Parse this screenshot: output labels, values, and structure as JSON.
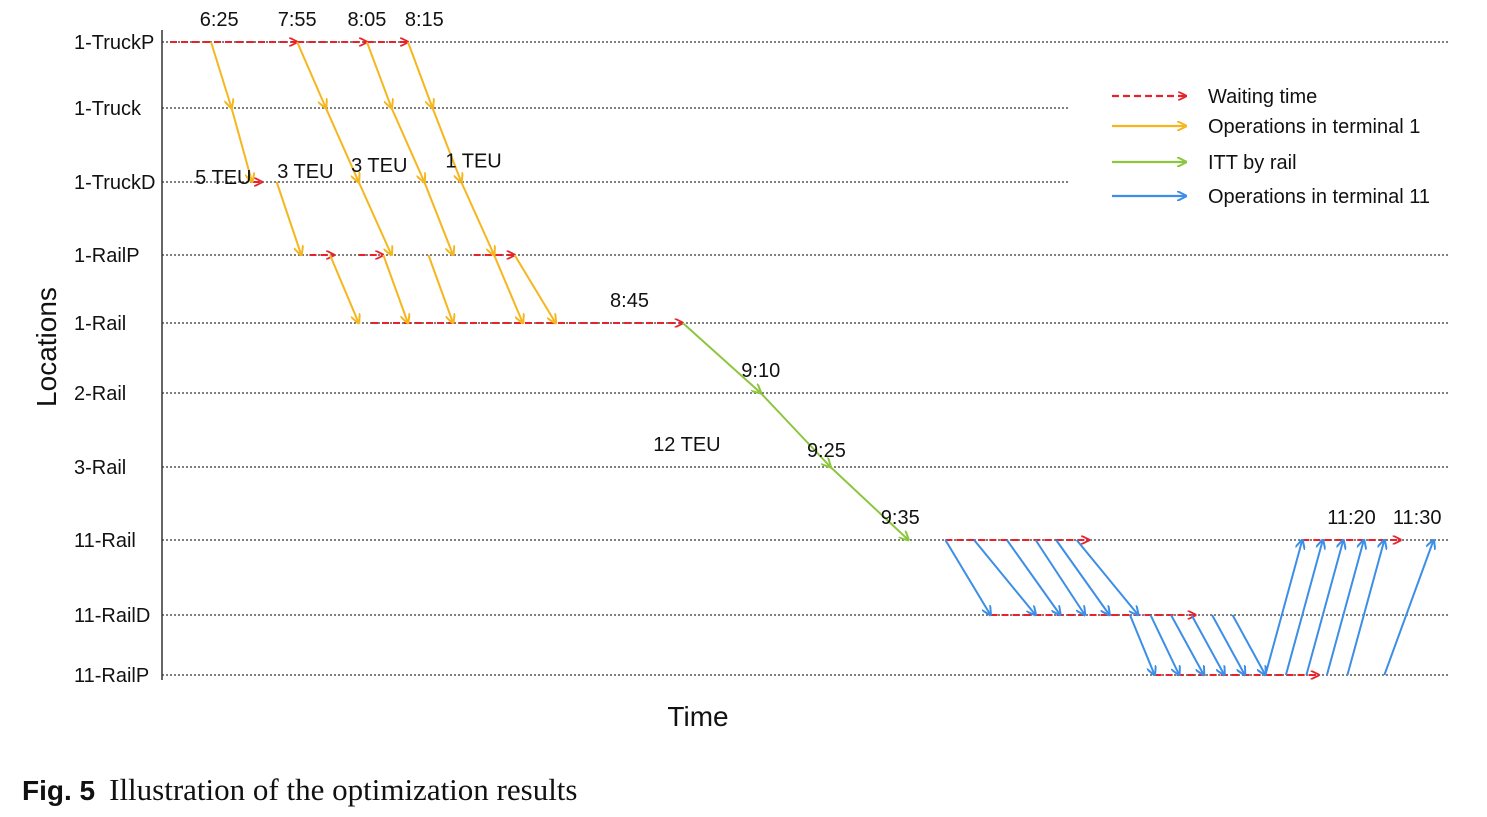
{
  "chart_data": {
    "type": "line",
    "title": "",
    "xlabel": "Time",
    "ylabel": "Locations",
    "locations": [
      "1-TruckP",
      "1-Truck",
      "1-TruckD",
      "1-RailP",
      "1-Rail",
      "2-Rail",
      "3-Rail",
      "11-Rail",
      "11-RailD",
      "11-RailP"
    ],
    "time_labels": [
      "6:25",
      "7:55",
      "8:05",
      "8:15",
      "8:45",
      "9:10",
      "9:25",
      "9:35",
      "11:20",
      "11:30"
    ],
    "volume_labels": [
      "5 TEU",
      "3 TEU",
      "3 TEU",
      "1 TEU",
      "12 TEU"
    ],
    "legend": [
      {
        "name": "Waiting time",
        "color": "#e8212b",
        "style": "dashed"
      },
      {
        "name": "Operations in terminal 1",
        "color": "#f5b61e",
        "style": "solid"
      },
      {
        "name": "ITT by rail",
        "color": "#8cc63f",
        "style": "solid"
      },
      {
        "name": "Operations in terminal 11",
        "color": "#3c8ee6",
        "style": "solid"
      }
    ],
    "series": [
      {
        "name": "Waiting time",
        "color": "#e8212b",
        "segments": [
          {
            "from": {
              "t": 0.0,
              "loc": "1-TruckP"
            },
            "to": {
              "t": 1.55,
              "loc": "1-TruckP"
            }
          },
          {
            "from": {
              "t": 1.55,
              "loc": "1-TruckP"
            },
            "to": {
              "t": 2.4,
              "loc": "1-TruckP"
            }
          },
          {
            "from": {
              "t": 2.4,
              "loc": "1-TruckP"
            },
            "to": {
              "t": 2.9,
              "loc": "1-TruckP"
            }
          },
          {
            "from": {
              "t": 1.0,
              "loc": "1-TruckD"
            },
            "to": {
              "t": 1.12,
              "loc": "1-TruckD"
            }
          },
          {
            "from": {
              "t": 1.7,
              "loc": "1-RailP"
            },
            "to": {
              "t": 2.0,
              "loc": "1-RailP"
            }
          },
          {
            "from": {
              "t": 2.3,
              "loc": "1-RailP"
            },
            "to": {
              "t": 2.6,
              "loc": "1-RailP"
            }
          },
          {
            "from": {
              "t": 3.7,
              "loc": "1-RailP"
            },
            "to": {
              "t": 4.2,
              "loc": "1-RailP"
            }
          },
          {
            "from": {
              "t": 2.45,
              "loc": "1-Rail"
            },
            "to": {
              "t": 6.25,
              "loc": "1-Rail"
            }
          },
          {
            "from": {
              "t": 9.45,
              "loc": "11-Rail"
            },
            "to": {
              "t": 11.2,
              "loc": "11-Rail"
            }
          },
          {
            "from": {
              "t": 10.0,
              "loc": "11-RailD"
            },
            "to": {
              "t": 12.5,
              "loc": "11-RailD"
            }
          },
          {
            "from": {
              "t": 12.0,
              "loc": "11-RailP"
            },
            "to": {
              "t": 14.0,
              "loc": "11-RailP"
            }
          },
          {
            "from": {
              "t": 13.8,
              "loc": "11-Rail"
            },
            "to": {
              "t": 15.0,
              "loc": "11-Rail"
            }
          }
        ]
      },
      {
        "name": "Operations in terminal 1",
        "color": "#f5b61e",
        "segments": [
          {
            "from": {
              "t": 0.5,
              "loc": "1-TruckP"
            },
            "to": {
              "t": 0.75,
              "loc": "1-Truck"
            }
          },
          {
            "from": {
              "t": 0.75,
              "loc": "1-Truck"
            },
            "to": {
              "t": 1.0,
              "loc": "1-TruckD"
            }
          },
          {
            "from": {
              "t": 1.3,
              "loc": "1-TruckD"
            },
            "to": {
              "t": 1.6,
              "loc": "1-RailP"
            }
          },
          {
            "from": {
              "t": 1.95,
              "loc": "1-RailP"
            },
            "to": {
              "t": 2.3,
              "loc": "1-Rail"
            }
          },
          {
            "from": {
              "t": 1.55,
              "loc": "1-TruckP"
            },
            "to": {
              "t": 1.9,
              "loc": "1-Truck"
            }
          },
          {
            "from": {
              "t": 1.9,
              "loc": "1-Truck"
            },
            "to": {
              "t": 2.3,
              "loc": "1-TruckD"
            }
          },
          {
            "from": {
              "t": 2.3,
              "loc": "1-TruckD"
            },
            "to": {
              "t": 2.7,
              "loc": "1-RailP"
            }
          },
          {
            "from": {
              "t": 2.6,
              "loc": "1-RailP"
            },
            "to": {
              "t": 2.9,
              "loc": "1-Rail"
            }
          },
          {
            "from": {
              "t": 2.4,
              "loc": "1-TruckP"
            },
            "to": {
              "t": 2.7,
              "loc": "1-Truck"
            }
          },
          {
            "from": {
              "t": 2.7,
              "loc": "1-Truck"
            },
            "to": {
              "t": 3.1,
              "loc": "1-TruckD"
            }
          },
          {
            "from": {
              "t": 3.1,
              "loc": "1-TruckD"
            },
            "to": {
              "t": 3.45,
              "loc": "1-RailP"
            }
          },
          {
            "from": {
              "t": 3.15,
              "loc": "1-RailP"
            },
            "to": {
              "t": 3.45,
              "loc": "1-Rail"
            }
          },
          {
            "from": {
              "t": 2.9,
              "loc": "1-TruckP"
            },
            "to": {
              "t": 3.2,
              "loc": "1-Truck"
            }
          },
          {
            "from": {
              "t": 3.2,
              "loc": "1-Truck"
            },
            "to": {
              "t": 3.55,
              "loc": "1-TruckD"
            }
          },
          {
            "from": {
              "t": 3.55,
              "loc": "1-TruckD"
            },
            "to": {
              "t": 3.95,
              "loc": "1-RailP"
            }
          },
          {
            "from": {
              "t": 3.95,
              "loc": "1-RailP"
            },
            "to": {
              "t": 4.3,
              "loc": "1-Rail"
            }
          },
          {
            "from": {
              "t": 4.2,
              "loc": "1-RailP"
            },
            "to": {
              "t": 4.7,
              "loc": "1-Rail"
            }
          }
        ]
      },
      {
        "name": "ITT by rail",
        "color": "#8cc63f",
        "segments": [
          {
            "from": {
              "t": 6.25,
              "loc": "1-Rail"
            },
            "to": {
              "t": 7.2,
              "loc": "2-Rail"
            }
          },
          {
            "from": {
              "t": 7.2,
              "loc": "2-Rail"
            },
            "to": {
              "t": 8.05,
              "loc": "3-Rail"
            }
          },
          {
            "from": {
              "t": 8.05,
              "loc": "3-Rail"
            },
            "to": {
              "t": 9.0,
              "loc": "11-Rail"
            }
          }
        ]
      },
      {
        "name": "Operations in terminal 11",
        "color": "#3c8ee6",
        "segments": [
          {
            "from": {
              "t": 9.45,
              "loc": "11-Rail"
            },
            "to": {
              "t": 10.0,
              "loc": "11-RailD"
            }
          },
          {
            "from": {
              "t": 9.8,
              "loc": "11-Rail"
            },
            "to": {
              "t": 10.55,
              "loc": "11-RailD"
            }
          },
          {
            "from": {
              "t": 10.2,
              "loc": "11-Rail"
            },
            "to": {
              "t": 10.85,
              "loc": "11-RailD"
            }
          },
          {
            "from": {
              "t": 10.55,
              "loc": "11-Rail"
            },
            "to": {
              "t": 11.15,
              "loc": "11-RailD"
            }
          },
          {
            "from": {
              "t": 10.8,
              "loc": "11-Rail"
            },
            "to": {
              "t": 11.45,
              "loc": "11-RailD"
            }
          },
          {
            "from": {
              "t": 11.05,
              "loc": "11-Rail"
            },
            "to": {
              "t": 11.8,
              "loc": "11-RailD"
            }
          },
          {
            "from": {
              "t": 11.7,
              "loc": "11-RailD"
            },
            "to": {
              "t": 12.0,
              "loc": "11-RailP"
            }
          },
          {
            "from": {
              "t": 11.95,
              "loc": "11-RailD"
            },
            "to": {
              "t": 12.3,
              "loc": "11-RailP"
            }
          },
          {
            "from": {
              "t": 12.2,
              "loc": "11-RailD"
            },
            "to": {
              "t": 12.6,
              "loc": "11-RailP"
            }
          },
          {
            "from": {
              "t": 12.45,
              "loc": "11-RailD"
            },
            "to": {
              "t": 12.85,
              "loc": "11-RailP"
            }
          },
          {
            "from": {
              "t": 12.7,
              "loc": "11-RailD"
            },
            "to": {
              "t": 13.1,
              "loc": "11-RailP"
            }
          },
          {
            "from": {
              "t": 12.95,
              "loc": "11-RailD"
            },
            "to": {
              "t": 13.35,
              "loc": "11-RailP"
            }
          },
          {
            "from": {
              "t": 13.35,
              "loc": "11-RailP"
            },
            "to": {
              "t": 13.8,
              "loc": "11-Rail"
            }
          },
          {
            "from": {
              "t": 13.6,
              "loc": "11-RailP"
            },
            "to": {
              "t": 14.05,
              "loc": "11-Rail"
            }
          },
          {
            "from": {
              "t": 13.85,
              "loc": "11-RailP"
            },
            "to": {
              "t": 14.3,
              "loc": "11-Rail"
            }
          },
          {
            "from": {
              "t": 14.1,
              "loc": "11-RailP"
            },
            "to": {
              "t": 14.55,
              "loc": "11-Rail"
            }
          },
          {
            "from": {
              "t": 14.35,
              "loc": "11-RailP"
            },
            "to": {
              "t": 14.8,
              "loc": "11-Rail"
            }
          },
          {
            "from": {
              "t": 14.8,
              "loc": "11-RailP"
            },
            "to": {
              "t": 15.4,
              "loc": "11-Rail"
            }
          }
        ]
      }
    ],
    "annotations": [
      {
        "text": "6:25",
        "t": 0.6,
        "loc": "1-TruckP",
        "dy": -1
      },
      {
        "text": "7:55",
        "t": 1.55,
        "loc": "1-TruckP",
        "dy": -1
      },
      {
        "text": "8:05",
        "t": 2.4,
        "loc": "1-TruckP",
        "dy": -1
      },
      {
        "text": "8:15",
        "t": 3.1,
        "loc": "1-TruckP",
        "dy": -1
      },
      {
        "text": "5 TEU",
        "t": 0.65,
        "loc": "1-TruckD",
        "dy": 0
      },
      {
        "text": "3 TEU",
        "t": 1.65,
        "loc": "1-TruckD",
        "dy": 0.2
      },
      {
        "text": "3 TEU",
        "t": 2.55,
        "loc": "1-TruckD",
        "dy": 0.4
      },
      {
        "text": "1 TEU",
        "t": 3.7,
        "loc": "1-TruckD",
        "dy": 0.55
      },
      {
        "text": "8:45",
        "t": 5.6,
        "loc": "1-Rail",
        "dy": -1
      },
      {
        "text": "9:10",
        "t": 7.2,
        "loc": "2-Rail",
        "dy": -1
      },
      {
        "text": "12 TEU",
        "t": 6.3,
        "loc": "3-Rail",
        "dy": 0.6
      },
      {
        "text": "9:25",
        "t": 8.0,
        "loc": "3-Rail",
        "dy": 0.4
      },
      {
        "text": "9:35",
        "t": 8.9,
        "loc": "11-Rail",
        "dy": -1
      },
      {
        "text": "11:20",
        "t": 14.4,
        "loc": "11-Rail",
        "dy": -1
      },
      {
        "text": "11:30",
        "t": 15.2,
        "loc": "11-Rail",
        "dy": -1
      }
    ]
  },
  "caption": {
    "fig_label": "Fig. 5",
    "text": "Illustration of the optimization results"
  }
}
